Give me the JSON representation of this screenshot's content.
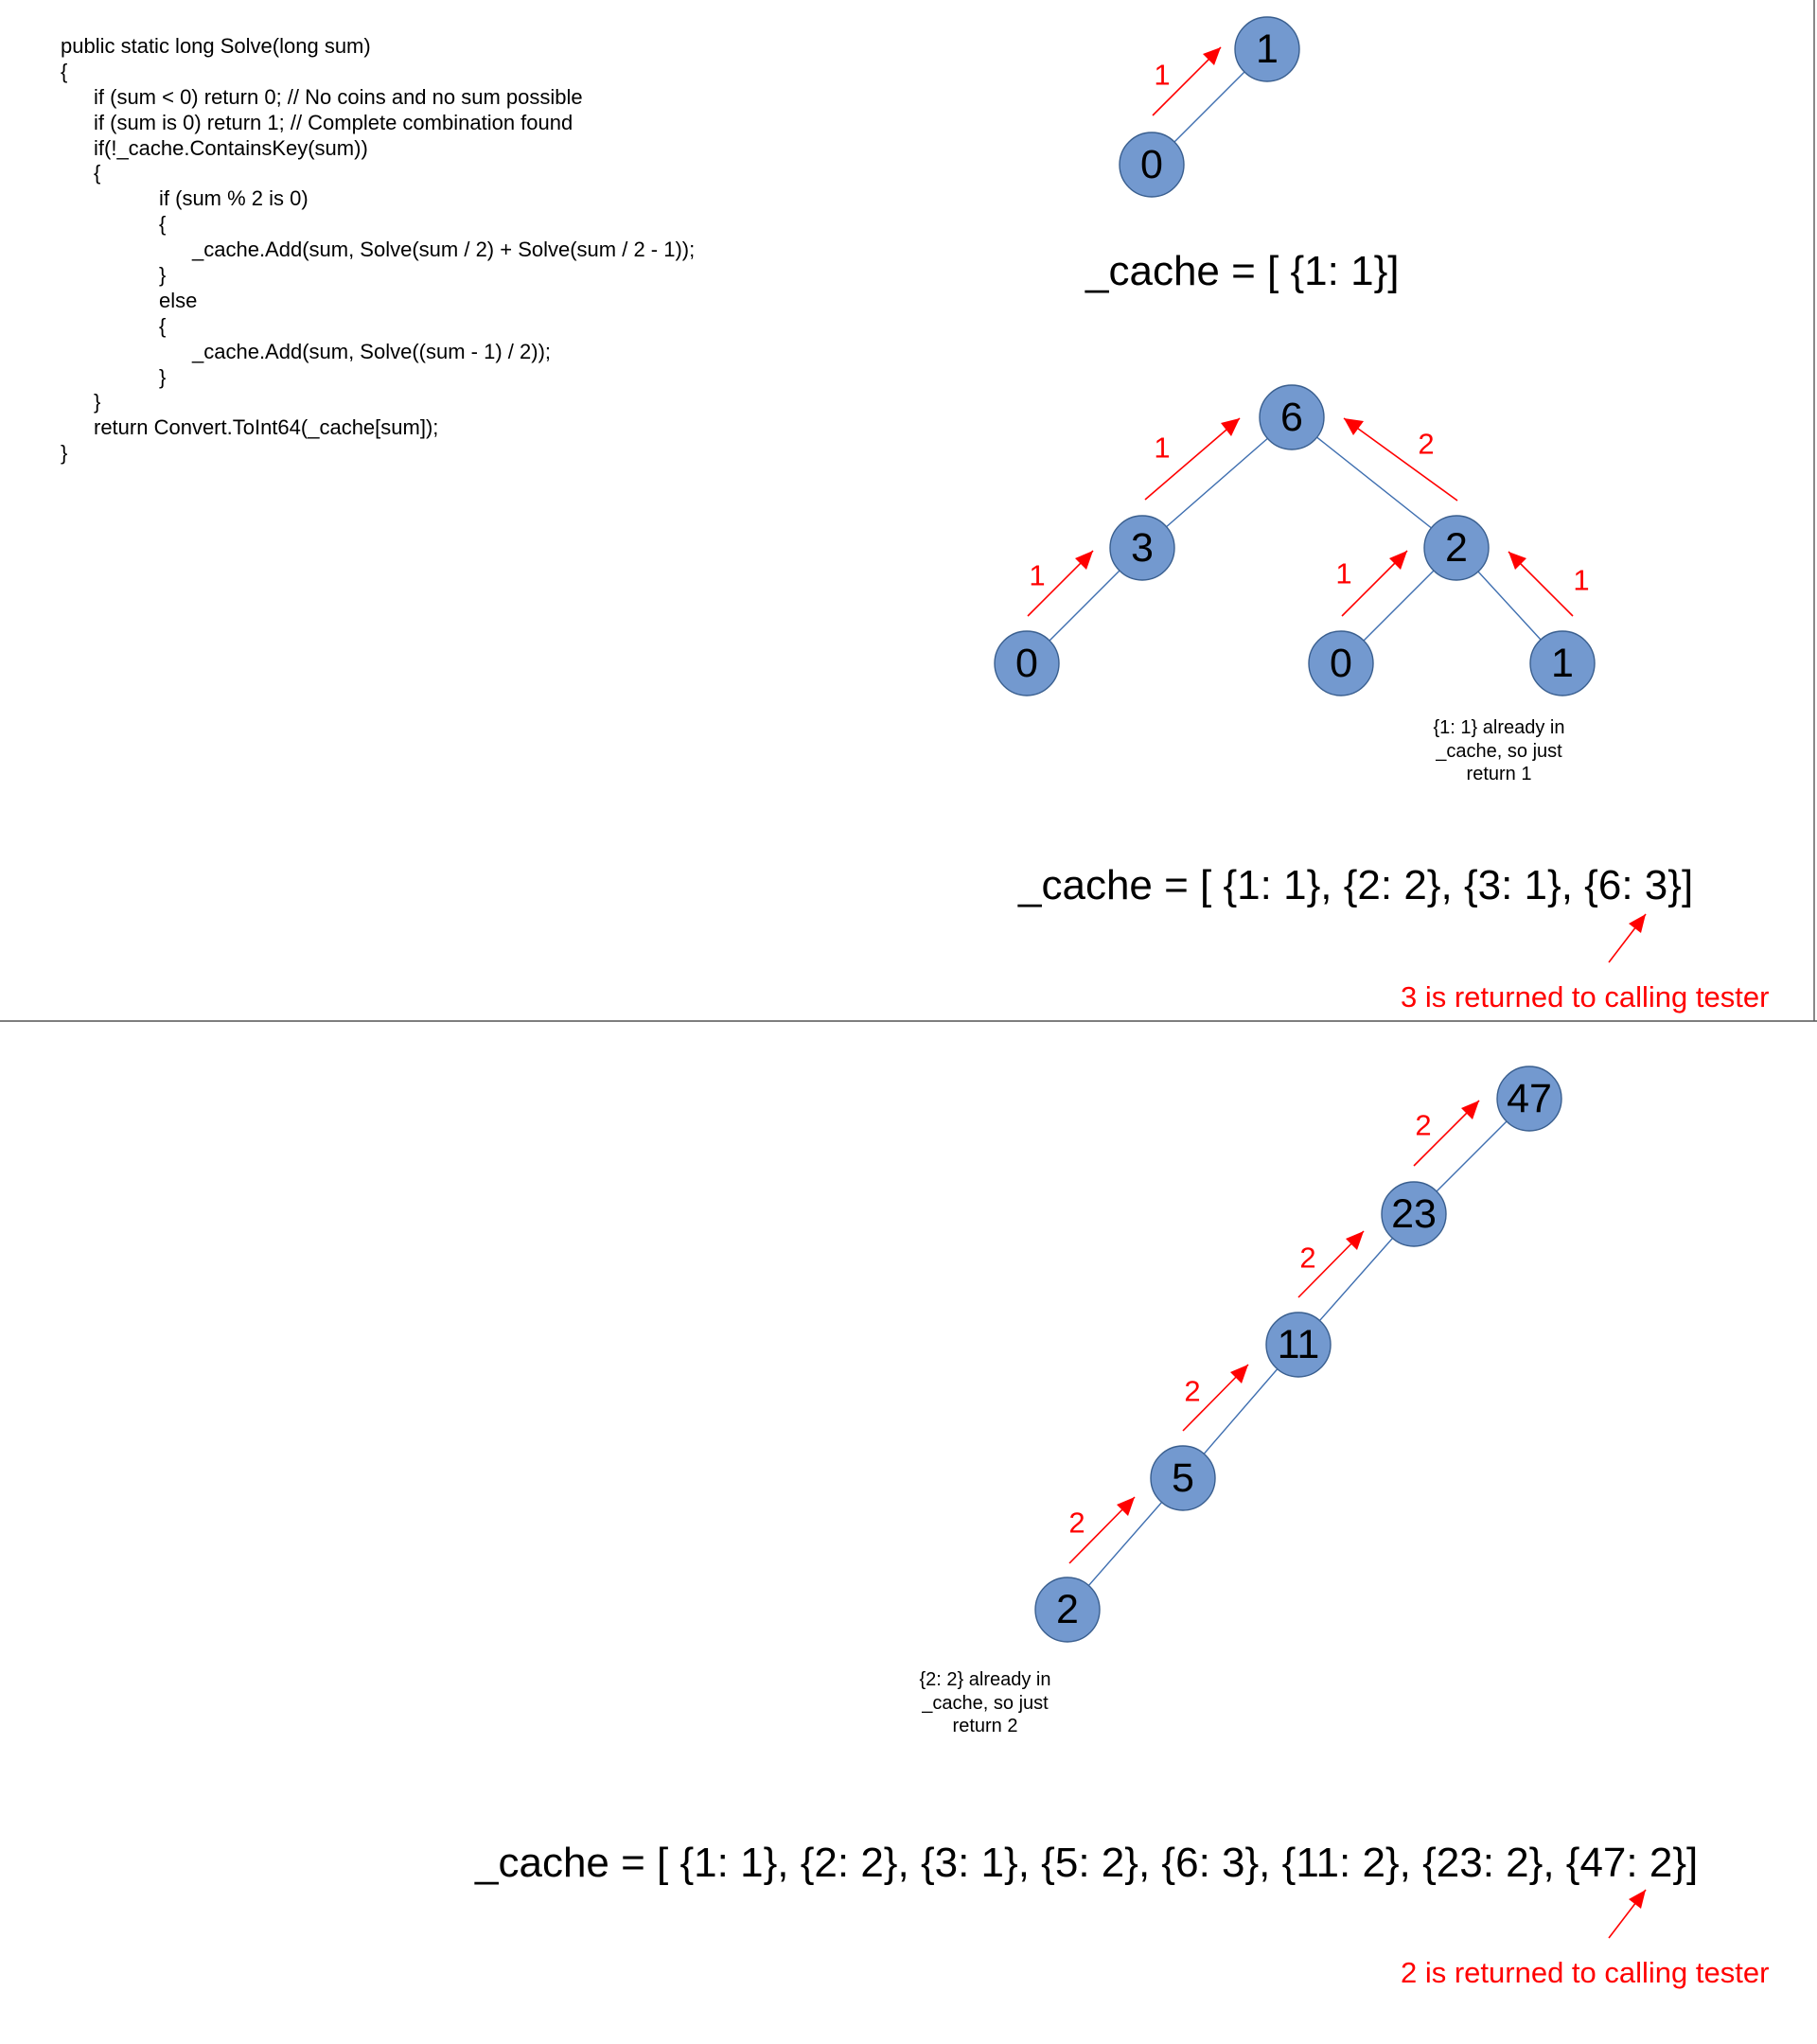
{
  "code": {
    "lines": [
      "public static long Solve(long sum)",
      "{",
      "if (sum < 0) return 0; // No coins and no sum possible",
      "if (sum is 0) return 1; // Complete combination found",
      "if(!_cache.ContainsKey(sum))",
      "{",
      "if (sum % 2 is 0)",
      "{",
      "_cache.Add(sum, Solve(sum / 2) + Solve(sum / 2 - 1));",
      "}",
      "else",
      "{",
      "_cache.Add(sum, Solve((sum - 1) / 2));",
      "}",
      "}",
      "return Convert.ToInt64(_cache[sum]);",
      "}"
    ]
  },
  "panel1": {
    "nodes": [
      "1",
      "0"
    ],
    "arrow_labels": [
      "1"
    ],
    "cache_text": "_cache = [ {1: 1}]"
  },
  "panel2": {
    "nodes": [
      "6",
      "3",
      "2",
      "0",
      "0",
      "1"
    ],
    "arrow_labels": [
      "1",
      "2",
      "1",
      "1",
      "1"
    ],
    "note": [
      "{1: 1} already in",
      "_cache, so just",
      "return 1"
    ],
    "cache_text": "_cache = [ {1: 1}, {2: 2}, {3: 1}, {6: 3}]",
    "returned_text": "3 is returned to calling tester"
  },
  "panel3": {
    "nodes": [
      "47",
      "23",
      "11",
      "5",
      "2"
    ],
    "arrow_labels": [
      "2",
      "2",
      "2",
      "2"
    ],
    "note": [
      "{2: 2} already in",
      "_cache, so just",
      "return 2"
    ],
    "cache_text": "_cache = [ {1: 1}, {2: 2}, {3: 1}, {5: 2}, {6: 3}, {11: 2}, {23: 2}, {47: 2}]",
    "returned_text": "2 is returned to calling tester"
  },
  "colors": {
    "node_fill": "#7399cf",
    "edge": "#3f6fb0",
    "arrow": "#ff0000",
    "text": "#000000"
  }
}
